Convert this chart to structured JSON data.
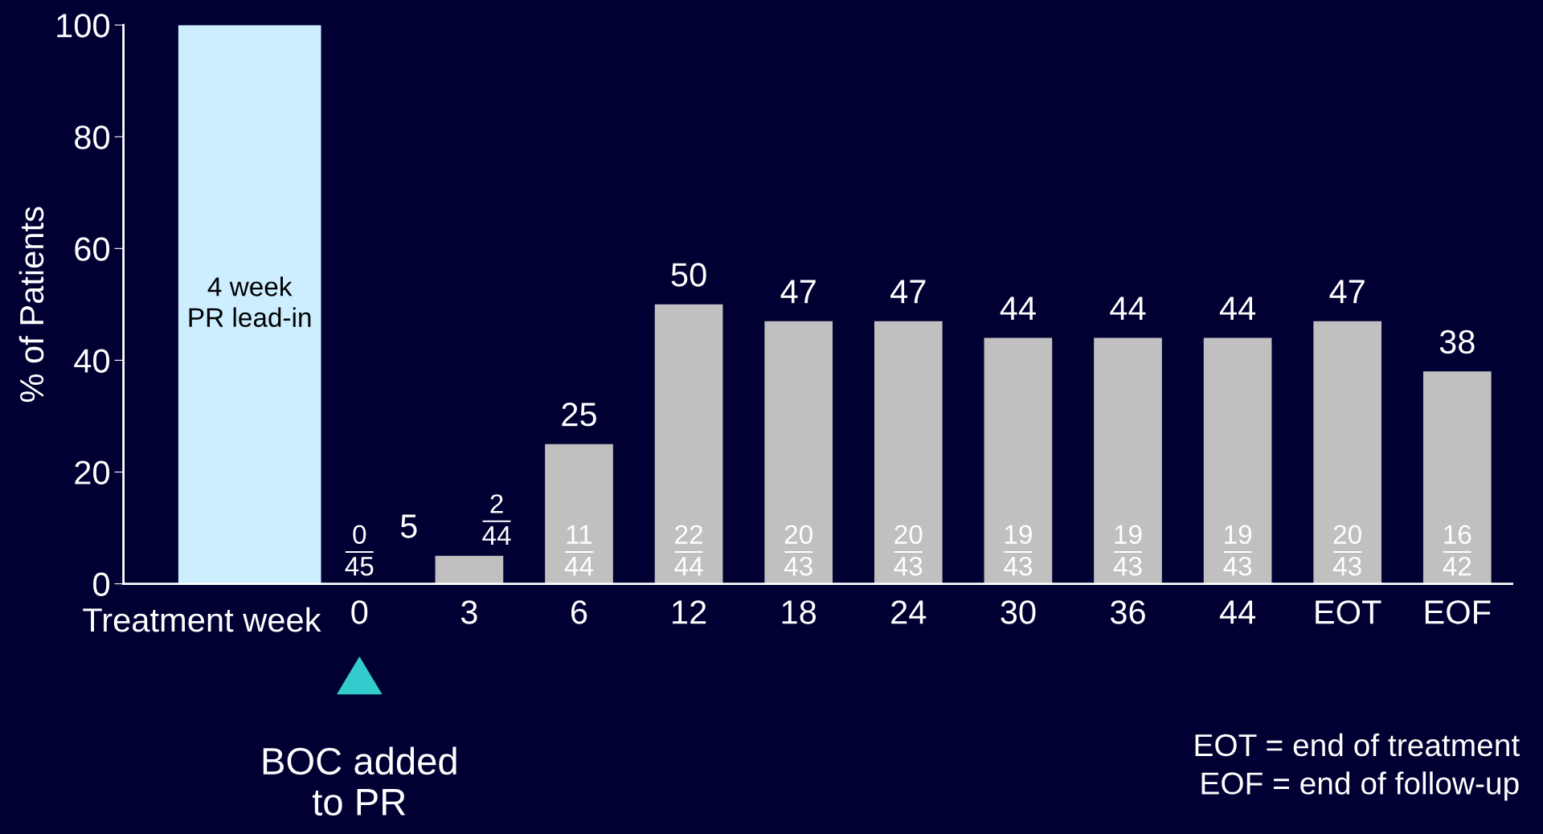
{
  "chart_data": {
    "type": "bar",
    "ylabel": "% of Patients",
    "xlabel": "Treatment week",
    "categories": [
      null,
      "0",
      "3",
      "6",
      "12",
      "18",
      "24",
      "30",
      "36",
      "44",
      "EOT",
      "EOF"
    ],
    "values": [
      100,
      0,
      5,
      25,
      50,
      47,
      47,
      44,
      44,
      44,
      47,
      38
    ],
    "colors": [
      "#cceeff",
      "#c0c0c0",
      "#c0c0c0",
      "#c0c0c0",
      "#c0c0c0",
      "#c0c0c0",
      "#c0c0c0",
      "#c0c0c0",
      "#c0c0c0",
      "#c0c0c0",
      "#c0c0c0",
      "#c0c0c0"
    ],
    "value_labels": [
      null,
      null,
      "5",
      "25",
      "50",
      "47",
      "47",
      "44",
      "44",
      "44",
      "47",
      "38"
    ],
    "ylim": [
      0,
      100
    ],
    "yticks": [
      0,
      20,
      40,
      60,
      80,
      100
    ],
    "grid": false,
    "legend": false,
    "annotations": [
      {
        "text": "0\n45",
        "x": "0",
        "y": 0
      },
      {
        "text": "2\n44",
        "x": "3",
        "y": 5
      },
      {
        "text": "11\n44",
        "x": "6",
        "y": 0
      },
      {
        "text": "22\n44",
        "x": "12",
        "y": 0
      },
      {
        "text": "20\n43",
        "x": "18",
        "y": 0
      },
      {
        "text": "20\n43",
        "x": "24",
        "y": 0
      },
      {
        "text": "19\n43",
        "x": "30",
        "y": 0
      },
      {
        "text": "19\n43",
        "x": "36",
        "y": 0
      },
      {
        "text": "19\n43",
        "x": "44",
        "y": 0
      },
      {
        "text": "20\n43",
        "x": "EOT",
        "y": 0
      },
      {
        "text": "16\n42",
        "x": "EOF",
        "y": 0
      },
      "BOC added\nto PR",
      "4 week\nPR lead-in",
      "EOT = end of treatment\nEOF = end of follow-up"
    ]
  }
}
